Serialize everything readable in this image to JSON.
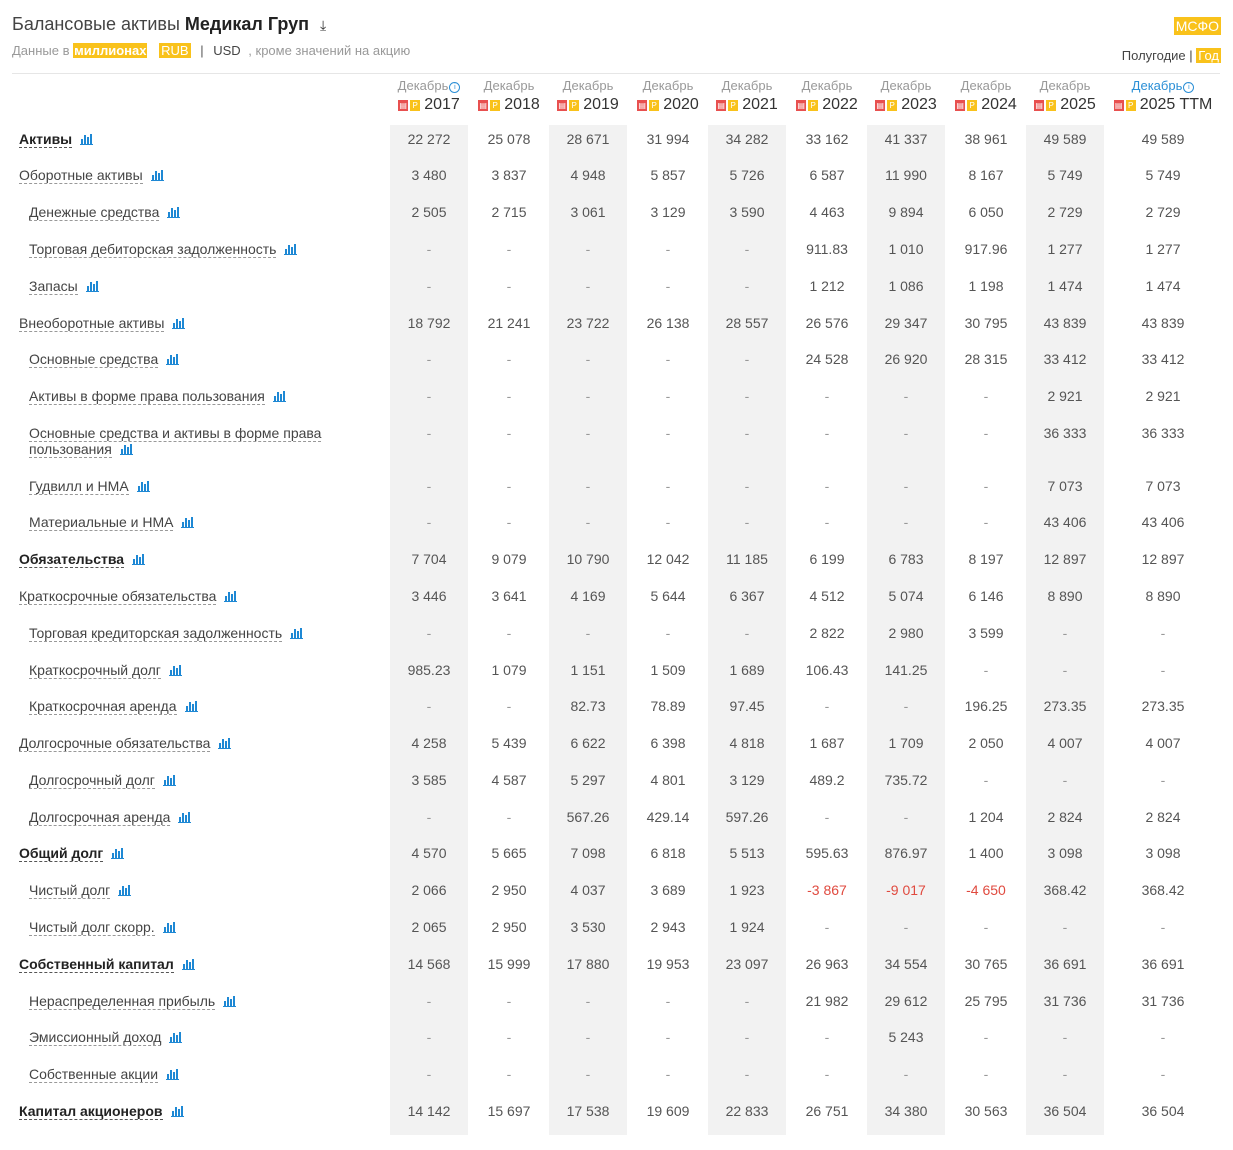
{
  "header": {
    "title_prefix": "Балансовые активы",
    "company": "Медикал Груп",
    "download_icon": "download-icon",
    "sub_prefix": "Данные в",
    "sub_units": "миллионах",
    "currency_rub": "RUB",
    "currency_sep": "|",
    "currency_usd": "USD",
    "sub_suffix": ", кроме значений на акцию",
    "standard": "МСФО",
    "period_half": "Полугодие",
    "period_sep": "|",
    "period_year": "Год"
  },
  "columns": [
    {
      "month": "Декабрь",
      "year": "2017",
      "info": true
    },
    {
      "month": "Декабрь",
      "year": "2018"
    },
    {
      "month": "Декабрь",
      "year": "2019"
    },
    {
      "month": "Декабрь",
      "year": "2020"
    },
    {
      "month": "Декабрь",
      "year": "2021"
    },
    {
      "month": "Декабрь",
      "year": "2022"
    },
    {
      "month": "Декабрь",
      "year": "2023"
    },
    {
      "month": "Декабрь",
      "year": "2024"
    },
    {
      "month": "Декабрь",
      "year": "2025"
    },
    {
      "month": "Декабрь",
      "year": "2025 TTM",
      "info": true,
      "ttm": true
    }
  ],
  "rows": [
    {
      "label": "Активы",
      "bold": true,
      "indent": 0,
      "values": [
        "22 272",
        "25 078",
        "28 671",
        "31 994",
        "34 282",
        "33 162",
        "41 337",
        "38 961",
        "49 589",
        "49 589"
      ]
    },
    {
      "label": "Оборотные активы",
      "indent": 0,
      "values": [
        "3 480",
        "3 837",
        "4 948",
        "5 857",
        "5 726",
        "6 587",
        "11 990",
        "8 167",
        "5 749",
        "5 749"
      ]
    },
    {
      "label": "Денежные средства",
      "indent": 1,
      "values": [
        "2 505",
        "2 715",
        "3 061",
        "3 129",
        "3 590",
        "4 463",
        "9 894",
        "6 050",
        "2 729",
        "2 729"
      ]
    },
    {
      "label": "Торговая дебиторская задолженность",
      "indent": 1,
      "values": [
        "-",
        "-",
        "-",
        "-",
        "-",
        "911.83",
        "1 010",
        "917.96",
        "1 277",
        "1 277"
      ]
    },
    {
      "label": "Запасы",
      "indent": 1,
      "values": [
        "-",
        "-",
        "-",
        "-",
        "-",
        "1 212",
        "1 086",
        "1 198",
        "1 474",
        "1 474"
      ]
    },
    {
      "label": "Внеоборотные активы",
      "indent": 0,
      "values": [
        "18 792",
        "21 241",
        "23 722",
        "26 138",
        "28 557",
        "26 576",
        "29 347",
        "30 795",
        "43 839",
        "43 839"
      ]
    },
    {
      "label": "Основные средства",
      "indent": 1,
      "values": [
        "-",
        "-",
        "-",
        "-",
        "-",
        "24 528",
        "26 920",
        "28 315",
        "33 412",
        "33 412"
      ]
    },
    {
      "label": "Активы в форме права пользования",
      "indent": 1,
      "values": [
        "-",
        "-",
        "-",
        "-",
        "-",
        "-",
        "-",
        "-",
        "2 921",
        "2 921"
      ]
    },
    {
      "label": "Основные средства и активы в форме права",
      "label2": "пользования",
      "indent": 1,
      "values": [
        "-",
        "-",
        "-",
        "-",
        "-",
        "-",
        "-",
        "-",
        "36 333",
        "36 333"
      ]
    },
    {
      "label": "Гудвилл и НМА",
      "indent": 1,
      "values": [
        "-",
        "-",
        "-",
        "-",
        "-",
        "-",
        "-",
        "-",
        "7 073",
        "7 073"
      ]
    },
    {
      "label": "Материальные и НМА",
      "indent": 1,
      "values": [
        "-",
        "-",
        "-",
        "-",
        "-",
        "-",
        "-",
        "-",
        "43 406",
        "43 406"
      ]
    },
    {
      "label": "Обязательства",
      "bold": true,
      "indent": 0,
      "values": [
        "7 704",
        "9 079",
        "10 790",
        "12 042",
        "11 185",
        "6 199",
        "6 783",
        "8 197",
        "12 897",
        "12 897"
      ]
    },
    {
      "label": "Краткосрочные обязательства",
      "indent": 0,
      "values": [
        "3 446",
        "3 641",
        "4 169",
        "5 644",
        "6 367",
        "4 512",
        "5 074",
        "6 146",
        "8 890",
        "8 890"
      ]
    },
    {
      "label": "Торговая кредиторская задолженность",
      "indent": 1,
      "values": [
        "-",
        "-",
        "-",
        "-",
        "-",
        "2 822",
        "2 980",
        "3 599",
        "-",
        "-"
      ]
    },
    {
      "label": "Краткосрочный долг",
      "indent": 1,
      "values": [
        "985.23",
        "1 079",
        "1 151",
        "1 509",
        "1 689",
        "106.43",
        "141.25",
        "-",
        "-",
        "-"
      ]
    },
    {
      "label": "Краткосрочная аренда",
      "indent": 1,
      "values": [
        "-",
        "-",
        "82.73",
        "78.89",
        "97.45",
        "-",
        "-",
        "196.25",
        "273.35",
        "273.35"
      ]
    },
    {
      "label": "Долгосрочные обязательства",
      "indent": 0,
      "values": [
        "4 258",
        "5 439",
        "6 622",
        "6 398",
        "4 818",
        "1 687",
        "1 709",
        "2 050",
        "4 007",
        "4 007"
      ]
    },
    {
      "label": "Долгосрочный долг",
      "indent": 1,
      "values": [
        "3 585",
        "4 587",
        "5 297",
        "4 801",
        "3 129",
        "489.2",
        "735.72",
        "-",
        "-",
        "-"
      ]
    },
    {
      "label": "Долгосрочная аренда",
      "indent": 1,
      "values": [
        "-",
        "-",
        "567.26",
        "429.14",
        "597.26",
        "-",
        "-",
        "1 204",
        "2 824",
        "2 824"
      ]
    },
    {
      "label": "Общий долг",
      "bold": true,
      "indent": 0,
      "values": [
        "4 570",
        "5 665",
        "7 098",
        "6 818",
        "5 513",
        "595.63",
        "876.97",
        "1 400",
        "3 098",
        "3 098"
      ]
    },
    {
      "label": "Чистый долг",
      "indent": 1,
      "values": [
        "2 066",
        "2 950",
        "4 037",
        "3 689",
        "1 923",
        "-3 867",
        "-9 017",
        "-4 650",
        "368.42",
        "368.42"
      ]
    },
    {
      "label": "Чистый долг скорр.",
      "indent": 1,
      "values": [
        "2 065",
        "2 950",
        "3 530",
        "2 943",
        "1 924",
        "-",
        "-",
        "-",
        "-",
        "-"
      ]
    },
    {
      "label": "Собственный капитал",
      "bold": true,
      "indent": 0,
      "values": [
        "14 568",
        "15 999",
        "17 880",
        "19 953",
        "23 097",
        "26 963",
        "34 554",
        "30 765",
        "36 691",
        "36 691"
      ]
    },
    {
      "label": "Нераспределенная прибыль",
      "indent": 1,
      "values": [
        "-",
        "-",
        "-",
        "-",
        "-",
        "21 982",
        "29 612",
        "25 795",
        "31 736",
        "31 736"
      ]
    },
    {
      "label": "Эмиссионный доход",
      "indent": 1,
      "values": [
        "-",
        "-",
        "-",
        "-",
        "-",
        "-",
        "5 243",
        "-",
        "-",
        "-"
      ]
    },
    {
      "label": "Собственные акции",
      "indent": 1,
      "values": [
        "-",
        "-",
        "-",
        "-",
        "-",
        "-",
        "-",
        "-",
        "-",
        "-"
      ]
    },
    {
      "label": "Капитал акционеров",
      "bold": true,
      "indent": 0,
      "values": [
        "14 142",
        "15 697",
        "17 538",
        "19 609",
        "22 833",
        "26 751",
        "34 380",
        "30 563",
        "36 504",
        "36 504"
      ]
    }
  ],
  "icons": {
    "row_chart": "bar-chart-icon",
    "pdf": "pdf-icon",
    "report": "report-icon",
    "info": "info-icon"
  },
  "colors": {
    "accent": "#f9c21b",
    "link_blue": "#1e88d4",
    "negative": "#e04a3f",
    "shaded_column": "#f2f2f2"
  }
}
